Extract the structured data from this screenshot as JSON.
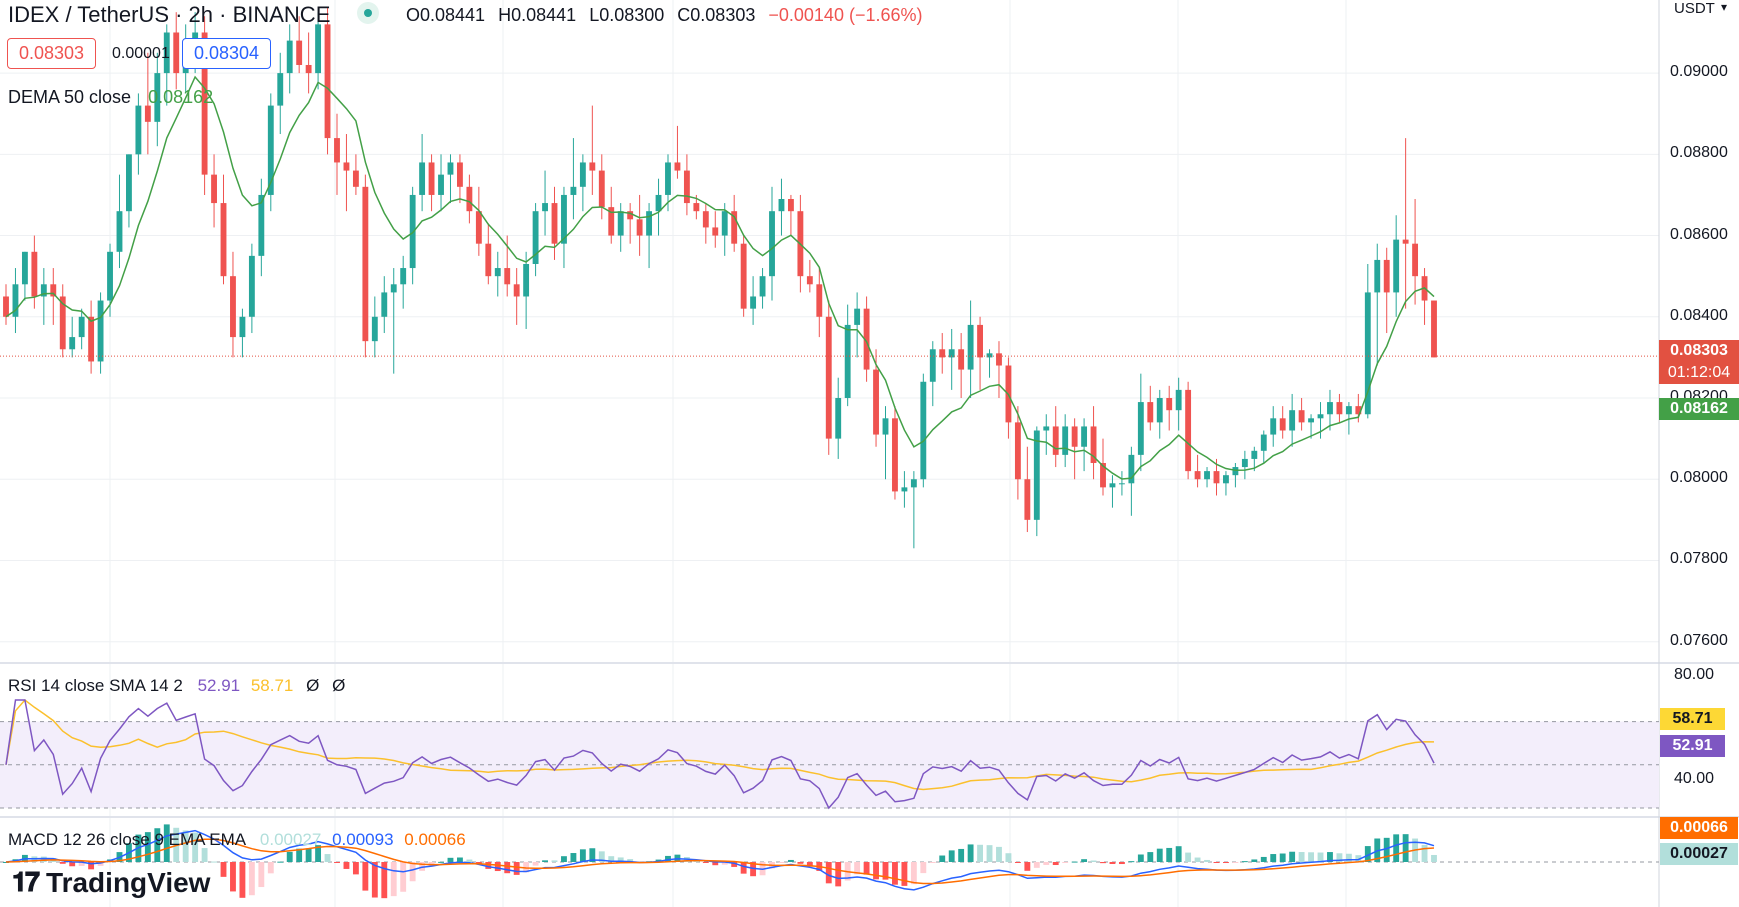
{
  "header": {
    "symbol_title": "IDEX / TetherUS · 2h · BINANCE",
    "ohlc": {
      "o": "O0.08441",
      "h": "H0.08441",
      "l": "L0.08300",
      "c": "C0.08303",
      "chg": "−0.00140 (−1.66%)"
    }
  },
  "trade": {
    "sell_price": "0.08303",
    "spread": "0.00001",
    "buy_price": "0.08304"
  },
  "dema": {
    "label": "DEMA 50 close",
    "value": "0.08162"
  },
  "price_axis": {
    "currency": "USDT",
    "ticks": [
      "0.09000",
      "0.08800",
      "0.08600",
      "0.08400",
      "0.08200",
      "0.08000",
      "0.07800",
      "0.07600"
    ],
    "last_price": "0.08303",
    "countdown": "01:12:04",
    "dema_tag": "0.08162"
  },
  "rsi": {
    "label": "RSI 14 close SMA 14 2",
    "rsi_value": "52.91",
    "sma_value": "58.71",
    "extra1": "Ø",
    "extra2": "Ø",
    "ticks": [
      "80.00",
      "40.00"
    ],
    "tag_sma": "58.71",
    "tag_rsi": "52.91"
  },
  "macd": {
    "label": "MACD 12 26 close 9 EMA EMA",
    "hist": "0.00027",
    "macd": "0.00093",
    "signal": "0.00066",
    "tag_signal": "0.00066",
    "tag_hist": "0.00027"
  },
  "brand": {
    "name": "TradingView"
  },
  "colors": {
    "up": "#26a69a",
    "down": "#ef5350",
    "dema": "#43a047",
    "rsi": "#7e57c2",
    "rsi_sma": "#fbc02d",
    "macd": "#2962ff",
    "signal": "#ff6d00",
    "last_tag": "#e25141"
  },
  "chart_data": {
    "type": "candlestick",
    "timeframe": "2h",
    "ylim": [
      0.0755,
      0.0918
    ],
    "candles": [
      [
        0.0845,
        0.0848,
        0.0838,
        0.084
      ],
      [
        0.084,
        0.0852,
        0.0836,
        0.0848
      ],
      [
        0.0848,
        0.0856,
        0.0844,
        0.0856
      ],
      [
        0.0856,
        0.086,
        0.0842,
        0.0845
      ],
      [
        0.0845,
        0.0852,
        0.0838,
        0.0848
      ],
      [
        0.0848,
        0.0852,
        0.0838,
        0.0845
      ],
      [
        0.0845,
        0.0848,
        0.083,
        0.0832
      ],
      [
        0.0832,
        0.084,
        0.083,
        0.0835
      ],
      [
        0.0835,
        0.0842,
        0.0832,
        0.084
      ],
      [
        0.084,
        0.0844,
        0.0826,
        0.0829
      ],
      [
        0.0829,
        0.0846,
        0.0826,
        0.0844
      ],
      [
        0.0844,
        0.0858,
        0.084,
        0.0856
      ],
      [
        0.0856,
        0.0875,
        0.0852,
        0.0866
      ],
      [
        0.0866,
        0.088,
        0.0862,
        0.088
      ],
      [
        0.088,
        0.0895,
        0.0875,
        0.0892
      ],
      [
        0.0892,
        0.0905,
        0.088,
        0.0888
      ],
      [
        0.0888,
        0.0905,
        0.0882,
        0.09
      ],
      [
        0.09,
        0.0912,
        0.0892,
        0.091
      ],
      [
        0.091,
        0.0915,
        0.0896,
        0.09
      ],
      [
        0.09,
        0.0912,
        0.0895,
        0.0905
      ],
      [
        0.0905,
        0.0915,
        0.09,
        0.091
      ],
      [
        0.091,
        0.0914,
        0.087,
        0.0875
      ],
      [
        0.0875,
        0.088,
        0.0862,
        0.0868
      ],
      [
        0.0868,
        0.0875,
        0.0848,
        0.085
      ],
      [
        0.085,
        0.0856,
        0.083,
        0.0835
      ],
      [
        0.0835,
        0.0842,
        0.083,
        0.084
      ],
      [
        0.084,
        0.0858,
        0.0836,
        0.0855
      ],
      [
        0.0855,
        0.0874,
        0.085,
        0.087
      ],
      [
        0.087,
        0.0895,
        0.0866,
        0.0892
      ],
      [
        0.0892,
        0.0905,
        0.0885,
        0.09
      ],
      [
        0.09,
        0.0912,
        0.0895,
        0.0908
      ],
      [
        0.0908,
        0.0914,
        0.09,
        0.0902
      ],
      [
        0.0902,
        0.091,
        0.0895,
        0.09
      ],
      [
        0.09,
        0.0915,
        0.0896,
        0.0912
      ],
      [
        0.0912,
        0.0916,
        0.088,
        0.0884
      ],
      [
        0.0884,
        0.089,
        0.087,
        0.0878
      ],
      [
        0.0878,
        0.0885,
        0.0866,
        0.0876
      ],
      [
        0.0876,
        0.088,
        0.087,
        0.0872
      ],
      [
        0.0872,
        0.0875,
        0.083,
        0.0834
      ],
      [
        0.0834,
        0.0845,
        0.083,
        0.084
      ],
      [
        0.084,
        0.085,
        0.0836,
        0.0846
      ],
      [
        0.0846,
        0.0852,
        0.0826,
        0.0848
      ],
      [
        0.0848,
        0.0855,
        0.0842,
        0.0852
      ],
      [
        0.0852,
        0.0872,
        0.0848,
        0.087
      ],
      [
        0.087,
        0.0885,
        0.0866,
        0.0878
      ],
      [
        0.0878,
        0.088,
        0.0866,
        0.087
      ],
      [
        0.087,
        0.088,
        0.0866,
        0.0875
      ],
      [
        0.0875,
        0.088,
        0.0868,
        0.0878
      ],
      [
        0.0878,
        0.088,
        0.0868,
        0.0872
      ],
      [
        0.0872,
        0.0875,
        0.0863,
        0.0866
      ],
      [
        0.0866,
        0.0872,
        0.0855,
        0.0858
      ],
      [
        0.0858,
        0.0863,
        0.0848,
        0.085
      ],
      [
        0.085,
        0.0856,
        0.0845,
        0.0852
      ],
      [
        0.0852,
        0.086,
        0.0845,
        0.0848
      ],
      [
        0.0848,
        0.0852,
        0.0838,
        0.0845
      ],
      [
        0.0845,
        0.0856,
        0.0837,
        0.0853
      ],
      [
        0.0853,
        0.0868,
        0.085,
        0.0866
      ],
      [
        0.0866,
        0.0876,
        0.086,
        0.0868
      ],
      [
        0.0868,
        0.0872,
        0.0854,
        0.0858
      ],
      [
        0.0858,
        0.0872,
        0.0852,
        0.087
      ],
      [
        0.087,
        0.0884,
        0.0864,
        0.0872
      ],
      [
        0.0872,
        0.088,
        0.0866,
        0.0878
      ],
      [
        0.0878,
        0.0892,
        0.087,
        0.0876
      ],
      [
        0.0876,
        0.088,
        0.0864,
        0.0867
      ],
      [
        0.0867,
        0.0872,
        0.0858,
        0.086
      ],
      [
        0.086,
        0.0868,
        0.0856,
        0.0866
      ],
      [
        0.0866,
        0.0868,
        0.0858,
        0.0864
      ],
      [
        0.0864,
        0.087,
        0.0855,
        0.086
      ],
      [
        0.086,
        0.0868,
        0.0852,
        0.0866
      ],
      [
        0.0866,
        0.0874,
        0.086,
        0.087
      ],
      [
        0.087,
        0.088,
        0.0866,
        0.0878
      ],
      [
        0.0878,
        0.0887,
        0.0874,
        0.0876
      ],
      [
        0.0876,
        0.088,
        0.0865,
        0.0868
      ],
      [
        0.0868,
        0.087,
        0.0864,
        0.0866
      ],
      [
        0.0866,
        0.0868,
        0.0858,
        0.0862
      ],
      [
        0.0862,
        0.0866,
        0.0857,
        0.086
      ],
      [
        0.086,
        0.0868,
        0.0855,
        0.0866
      ],
      [
        0.0866,
        0.087,
        0.0856,
        0.0858
      ],
      [
        0.0858,
        0.086,
        0.084,
        0.0842
      ],
      [
        0.0842,
        0.085,
        0.0838,
        0.0845
      ],
      [
        0.0845,
        0.0852,
        0.0842,
        0.085
      ],
      [
        0.085,
        0.0872,
        0.0844,
        0.0866
      ],
      [
        0.0866,
        0.0874,
        0.086,
        0.0869
      ],
      [
        0.0869,
        0.087,
        0.086,
        0.0866
      ],
      [
        0.0866,
        0.087,
        0.0846,
        0.085
      ],
      [
        0.085,
        0.0854,
        0.0846,
        0.0848
      ],
      [
        0.0848,
        0.0852,
        0.0835,
        0.084
      ],
      [
        0.084,
        0.0844,
        0.0806,
        0.081
      ],
      [
        0.081,
        0.0825,
        0.0805,
        0.082
      ],
      [
        0.082,
        0.0843,
        0.0818,
        0.0838
      ],
      [
        0.0838,
        0.0846,
        0.083,
        0.0842
      ],
      [
        0.0842,
        0.0845,
        0.0824,
        0.0827
      ],
      [
        0.0827,
        0.0832,
        0.0808,
        0.0811
      ],
      [
        0.0811,
        0.0818,
        0.08,
        0.0815
      ],
      [
        0.0815,
        0.0818,
        0.0795,
        0.0797
      ],
      [
        0.0797,
        0.0802,
        0.0793,
        0.0798
      ],
      [
        0.0798,
        0.0802,
        0.0783,
        0.08
      ],
      [
        0.08,
        0.0826,
        0.0798,
        0.0824
      ],
      [
        0.0824,
        0.0834,
        0.0818,
        0.0832
      ],
      [
        0.0832,
        0.0836,
        0.0826,
        0.083
      ],
      [
        0.083,
        0.0837,
        0.0822,
        0.0832
      ],
      [
        0.0832,
        0.0836,
        0.082,
        0.0827
      ],
      [
        0.0827,
        0.0844,
        0.082,
        0.0838
      ],
      [
        0.0838,
        0.084,
        0.0822,
        0.083
      ],
      [
        0.083,
        0.0832,
        0.0825,
        0.0831
      ],
      [
        0.0831,
        0.0834,
        0.082,
        0.0828
      ],
      [
        0.0828,
        0.083,
        0.081,
        0.0814
      ],
      [
        0.0814,
        0.0818,
        0.0795,
        0.08
      ],
      [
        0.08,
        0.0808,
        0.0787,
        0.079
      ],
      [
        0.079,
        0.0813,
        0.0786,
        0.0812
      ],
      [
        0.0812,
        0.0816,
        0.0806,
        0.0813
      ],
      [
        0.0813,
        0.0818,
        0.0803,
        0.0806
      ],
      [
        0.0806,
        0.0816,
        0.0803,
        0.0813
      ],
      [
        0.0813,
        0.0815,
        0.08,
        0.0808
      ],
      [
        0.0808,
        0.0815,
        0.0802,
        0.0813
      ],
      [
        0.0813,
        0.0818,
        0.08,
        0.0804
      ],
      [
        0.0804,
        0.081,
        0.0796,
        0.0798
      ],
      [
        0.0798,
        0.0801,
        0.0793,
        0.0799
      ],
      [
        0.0799,
        0.0802,
        0.0796,
        0.0799
      ],
      [
        0.0799,
        0.0808,
        0.0791,
        0.0806
      ],
      [
        0.0806,
        0.0826,
        0.0802,
        0.0819
      ],
      [
        0.0819,
        0.0823,
        0.0812,
        0.0814
      ],
      [
        0.0814,
        0.0822,
        0.081,
        0.082
      ],
      [
        0.082,
        0.0823,
        0.0812,
        0.0817
      ],
      [
        0.0817,
        0.0825,
        0.0812,
        0.0822
      ],
      [
        0.0822,
        0.0824,
        0.08,
        0.0802
      ],
      [
        0.0802,
        0.0806,
        0.0798,
        0.08
      ],
      [
        0.08,
        0.0803,
        0.0798,
        0.0802
      ],
      [
        0.0802,
        0.0805,
        0.0796,
        0.0799
      ],
      [
        0.0799,
        0.0802,
        0.0796,
        0.0801
      ],
      [
        0.0801,
        0.0804,
        0.0798,
        0.0803
      ],
      [
        0.0803,
        0.0807,
        0.08,
        0.0805
      ],
      [
        0.0805,
        0.0808,
        0.0802,
        0.0807
      ],
      [
        0.0807,
        0.0812,
        0.0804,
        0.0811
      ],
      [
        0.0811,
        0.0818,
        0.0808,
        0.0815
      ],
      [
        0.0815,
        0.0818,
        0.081,
        0.0812
      ],
      [
        0.0812,
        0.0821,
        0.0808,
        0.0817
      ],
      [
        0.0817,
        0.082,
        0.0812,
        0.0814
      ],
      [
        0.0814,
        0.0816,
        0.081,
        0.0815
      ],
      [
        0.0815,
        0.0819,
        0.081,
        0.0816
      ],
      [
        0.0816,
        0.0822,
        0.0812,
        0.0819
      ],
      [
        0.0819,
        0.0821,
        0.0814,
        0.0816
      ],
      [
        0.0816,
        0.0819,
        0.0811,
        0.0818
      ],
      [
        0.0818,
        0.0821,
        0.0814,
        0.0816
      ],
      [
        0.0816,
        0.0853,
        0.0815,
        0.0846
      ],
      [
        0.0846,
        0.0858,
        0.0828,
        0.0854
      ],
      [
        0.0854,
        0.0857,
        0.0836,
        0.0846
      ],
      [
        0.0846,
        0.0865,
        0.084,
        0.0859
      ],
      [
        0.0859,
        0.0884,
        0.0842,
        0.0858
      ],
      [
        0.0858,
        0.0869,
        0.0843,
        0.085
      ],
      [
        0.085,
        0.0852,
        0.0838,
        0.0844
      ],
      [
        0.0844,
        0.0844,
        0.083,
        0.083
      ]
    ]
  }
}
